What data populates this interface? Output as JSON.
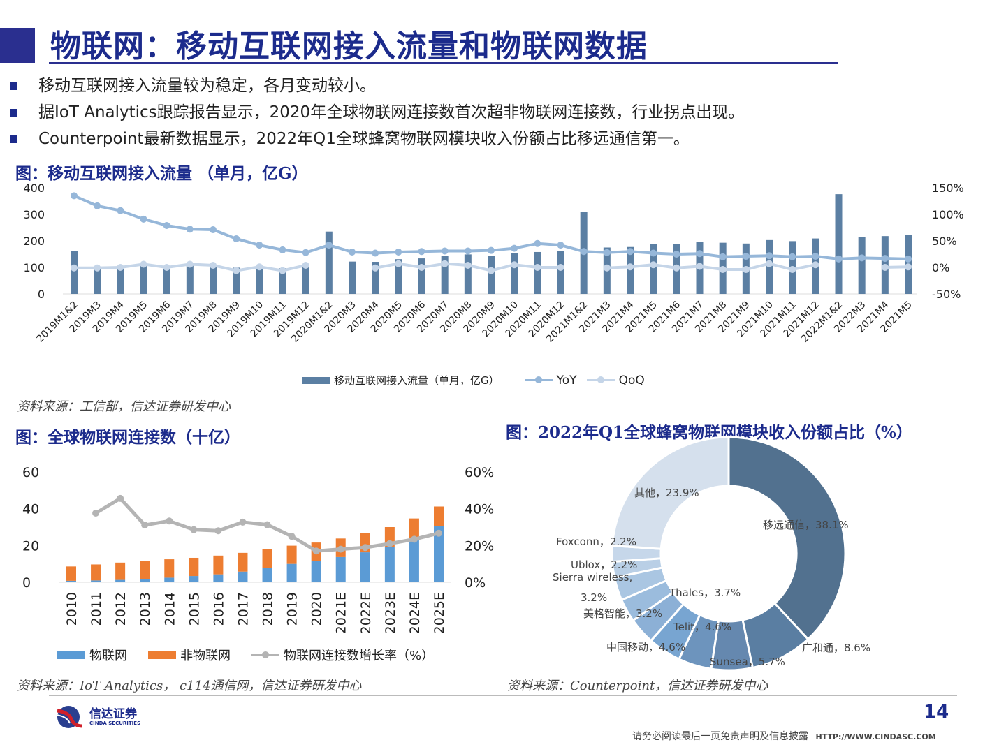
{
  "header": {
    "title": "物联网：移动互联网接入流量和物联网数据"
  },
  "bullets": [
    "移动互联网接入流量较为稳定，各月变动较小。",
    "据IoT Analytics跟踪报告显示，2020年全球物联网连接数首次超非物联网连接数，行业拐点出现。",
    "Counterpoint最新数据显示，2022年Q1全球蜂窝物联网模块收入份额占比移远通信第一。"
  ],
  "colors": {
    "brand": "#1c2b8c",
    "bar": "#5b7fa3",
    "yoy": "#96b7d9",
    "qoq": "#c5d5e8",
    "iot": "#5b9bd5",
    "noniot": "#ed7d31",
    "growth": "#b4b4b4"
  },
  "chart_data": [
    {
      "type": "bar+line",
      "title": "图：移动互联网接入流量 （单月，亿G）",
      "source": "资料来源：工信部，信达证券研发中心",
      "left_ticks": [
        "400",
        "300",
        "200",
        "100",
        "0"
      ],
      "right_ticks": [
        "150%",
        "100%",
        "50%",
        "0%",
        "-50%"
      ],
      "ylim": [
        0,
        400
      ],
      "y2lim": [
        -50,
        150
      ],
      "categories": [
        "2019M1&2",
        "2019M3",
        "2019M4",
        "2019M5",
        "2019M6",
        "2019M7",
        "2019M8",
        "2019M9",
        "2019M10",
        "2019M11",
        "2019M12",
        "2020M1&2",
        "2020M3",
        "2020M4",
        "2020M5",
        "2020M6",
        "2020M7",
        "2020M8",
        "2020M9",
        "2020M10",
        "2020M11",
        "2020M12",
        "2021M1&2",
        "2021M3",
        "2021M4",
        "2021M5",
        "2021M6",
        "2021M7",
        "2021M8",
        "2021M9",
        "2021M10",
        "2021M11",
        "2021M12",
        "2022M1&2",
        "2022M3",
        "2021M4",
        "2021M5"
      ],
      "series": [
        {
          "name": "移动互联网接入流量（单月，亿G）",
          "type": "bar",
          "axis": "left",
          "values": [
            162,
            103,
            103,
            108,
            101,
            110,
            108,
            99,
            105,
            97,
            107,
            235,
            122,
            121,
            131,
            134,
            143,
            149,
            144,
            155,
            158,
            162,
            310,
            175,
            177,
            188,
            188,
            196,
            193,
            190,
            203,
            199,
            209,
            376,
            214,
            218,
            223
          ]
        },
        {
          "name": "YoY",
          "type": "line",
          "axis": "right",
          "values": [
            135,
            116,
            107,
            91,
            79,
            72,
            71,
            54,
            42,
            33,
            28,
            42,
            29,
            27,
            29,
            30,
            31,
            31,
            32,
            36,
            45,
            42,
            30,
            28,
            30,
            27,
            25,
            26,
            20,
            21,
            22,
            20,
            21,
            16,
            18,
            17,
            16
          ]
        },
        {
          "name": "QoQ",
          "type": "line",
          "axis": "right",
          "values": [
            -1,
            -1,
            0,
            6,
            0,
            6,
            4,
            -6,
            1,
            -6,
            4,
            null,
            null,
            -1,
            7,
            0,
            7,
            4,
            -6,
            5,
            0,
            0,
            null,
            -1,
            1,
            5,
            -1,
            2,
            -4,
            -4,
            7,
            -4,
            5,
            null,
            null,
            0,
            1
          ]
        }
      ]
    },
    {
      "type": "stacked-bar+line",
      "title": "图：全球物联网连接数（十亿）",
      "source": "资料来源：IoT Analytics， c114通信网，信达证券研发中心",
      "left_ticks": [
        "60",
        "40",
        "20",
        "0"
      ],
      "right_ticks": [
        "60%",
        "40%",
        "20%",
        "0%"
      ],
      "ylim": [
        0,
        60
      ],
      "y2lim": [
        0,
        60
      ],
      "categories": [
        "2010",
        "2011",
        "2012",
        "2013",
        "2014",
        "2015",
        "2016",
        "2017",
        "2018",
        "2019",
        "2020",
        "2021E",
        "2022E",
        "2023E",
        "2024E",
        "2025E"
      ],
      "series": [
        {
          "name": "物联网",
          "type": "bar",
          "values": [
            0.8,
            1.0,
            1.3,
            1.9,
            2.5,
            3.4,
            4.3,
            5.8,
            7.9,
            10.0,
            11.7,
            13.7,
            16.3,
            19.3,
            23.1,
            30.7
          ]
        },
        {
          "name": "非物联网",
          "type": "bar",
          "values": [
            7.8,
            8.7,
            9.4,
            9.5,
            10.0,
            9.9,
            10.2,
            10.2,
            10.0,
            9.9,
            9.9,
            10.1,
            10.3,
            10.7,
            11.6,
            10.5
          ]
        },
        {
          "name": "物联网连接数增长率（%）",
          "type": "line",
          "values": [
            null,
            37.6,
            45.6,
            31.1,
            33.3,
            28.6,
            28.0,
            32.7,
            31.3,
            25.0,
            17.0,
            18.0,
            18.9,
            21.0,
            23.4,
            26.7
          ]
        }
      ]
    },
    {
      "type": "pie",
      "title": "图：2022年Q1全球蜂窝物联网模块收入份额占比（%）",
      "source": "资料来源：Counterpoint，信达证券研发中心",
      "slices": [
        {
          "label": "移远通信，38.1%",
          "name": "移远通信",
          "value": 38.1,
          "color": "#52718f"
        },
        {
          "label": "广和通，8.6%",
          "name": "广和通",
          "value": 8.6,
          "color": "#5a7ea2"
        },
        {
          "label": "Sunsea，5.7%",
          "name": "Sunsea",
          "value": 5.7,
          "color": "#6588af"
        },
        {
          "label": "Telit，4.6%",
          "name": "Telit",
          "value": 4.6,
          "color": "#6d94bd"
        },
        {
          "label": "中国移动，4.6%",
          "name": "中国移动",
          "value": 4.6,
          "color": "#78a5d1"
        },
        {
          "label": "Thales，3.7%",
          "name": "Thales",
          "value": 3.7,
          "color": "#8cb0d6"
        },
        {
          "label": "美格智能，3.2%",
          "name": "美格智能",
          "value": 3.2,
          "color": "#9bbcdd"
        },
        {
          "label": "Sierra  wireless,",
          "label2": "3.2%",
          "name": "Sierra wireless",
          "value": 3.2,
          "color": "#aac6e2"
        },
        {
          "label": "Ublox，2.2%",
          "name": "Ublox",
          "value": 2.2,
          "color": "#b9cfe6"
        },
        {
          "label": "Foxconn，2.2%",
          "name": "Foxconn",
          "value": 2.2,
          "color": "#c6d7ea"
        },
        {
          "label": "其他，23.9%",
          "name": "其他",
          "value": 23.9,
          "color": "#d5e0ed"
        }
      ]
    }
  ],
  "footer": {
    "logo_cn": "信达证券",
    "logo_en": "CINDA SECURITIES",
    "page": "14",
    "disclaimer": "请务必阅读最后一页免责声明及信息披露",
    "url": "HTTP://WWW.CINDASC.COM"
  }
}
